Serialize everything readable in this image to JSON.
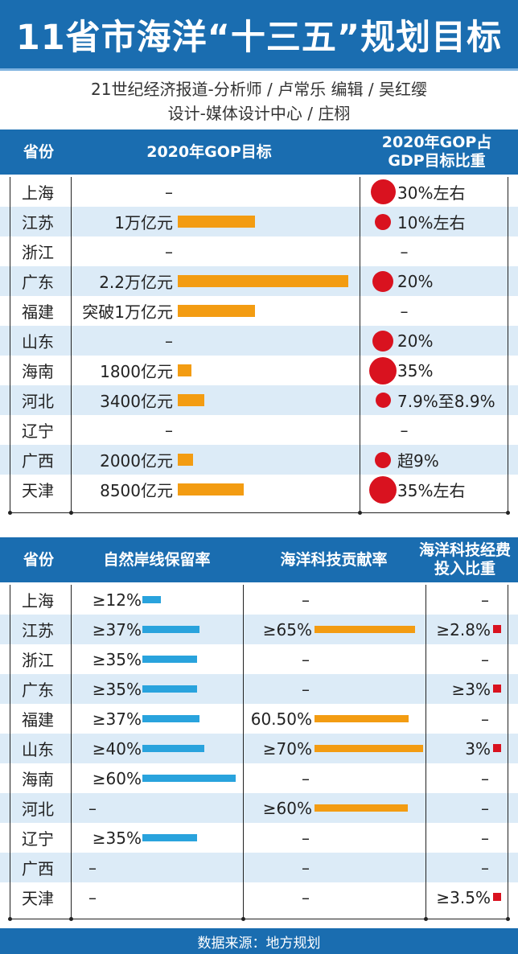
{
  "title": "11省市海洋“十三五”规划目标",
  "credits": {
    "line1": "21世纪经济报道-分析师 / 卢常乐   编辑 / 吴红缨",
    "line2": "设计-媒体设计中心 / 庄栩"
  },
  "colors": {
    "header_blue": "#1a6db0",
    "orange": "#f39c12",
    "blue": "#29a3dd",
    "red": "#d9121f",
    "row_alt": "#dcebf7"
  },
  "table1": {
    "headers": [
      "省份",
      "2020年GOP目标",
      "2020年GOP占\nGDP目标比重"
    ],
    "rows": [
      {
        "prov": "上海",
        "gop": "–",
        "gop_value": null,
        "share": "30%左右",
        "share_value": 30
      },
      {
        "prov": "江苏",
        "gop": "1万亿元",
        "gop_value": 10000,
        "share": "10%左右",
        "share_value": 10
      },
      {
        "prov": "浙江",
        "gop": "–",
        "gop_value": null,
        "share": "–",
        "share_value": null
      },
      {
        "prov": "广东",
        "gop": "2.2万亿元",
        "gop_value": 22000,
        "share": "20%",
        "share_value": 20
      },
      {
        "prov": "福建",
        "gop": "突破1万亿元",
        "gop_value": 10000,
        "share": "–",
        "share_value": null
      },
      {
        "prov": "山东",
        "gop": "–",
        "gop_value": null,
        "share": "20%",
        "share_value": 20
      },
      {
        "prov": "海南",
        "gop": "1800亿元",
        "gop_value": 1800,
        "share": "35%",
        "share_value": 35
      },
      {
        "prov": "河北",
        "gop": "3400亿元",
        "gop_value": 3400,
        "share": "7.9%至8.9%",
        "share_value": 8.4
      },
      {
        "prov": "辽宁",
        "gop": "–",
        "gop_value": null,
        "share": "–",
        "share_value": null
      },
      {
        "prov": "广西",
        "gop": "2000亿元",
        "gop_value": 2000,
        "share": "超9%",
        "share_value": 9
      },
      {
        "prov": "天津",
        "gop": "8500亿元",
        "gop_value": 8500,
        "share": "35%左右",
        "share_value": 35
      }
    ]
  },
  "table2": {
    "headers": [
      "省份",
      "自然岸线保留率",
      "海洋科技贡献率",
      "海洋科技经费\n投入比重"
    ],
    "rows": [
      {
        "prov": "上海",
        "shore": "≥12%",
        "shore_value": 12,
        "tech": "–",
        "tech_value": null,
        "fund": "–",
        "fund_value": null
      },
      {
        "prov": "江苏",
        "shore": "≥37%",
        "shore_value": 37,
        "tech": "≥65%",
        "tech_value": 65,
        "fund": "≥2.8%",
        "fund_value": 2.8
      },
      {
        "prov": "浙江",
        "shore": "≥35%",
        "shore_value": 35,
        "tech": "–",
        "tech_value": null,
        "fund": "–",
        "fund_value": null
      },
      {
        "prov": "广东",
        "shore": "≥35%",
        "shore_value": 35,
        "tech": "–",
        "tech_value": null,
        "fund": "≥3%",
        "fund_value": 3
      },
      {
        "prov": "福建",
        "shore": "≥37%",
        "shore_value": 37,
        "tech": "60.50%",
        "tech_value": 60.5,
        "fund": "–",
        "fund_value": null
      },
      {
        "prov": "山东",
        "shore": "≥40%",
        "shore_value": 40,
        "tech": "≥70%",
        "tech_value": 70,
        "fund": "3%",
        "fund_value": 3
      },
      {
        "prov": "海南",
        "shore": "≥60%",
        "shore_value": 60,
        "tech": "–",
        "tech_value": null,
        "fund": "–",
        "fund_value": null
      },
      {
        "prov": "河北",
        "shore": "–",
        "shore_value": null,
        "tech": "≥60%",
        "tech_value": 60,
        "fund": "–",
        "fund_value": null
      },
      {
        "prov": "辽宁",
        "shore": "≥35%",
        "shore_value": 35,
        "tech": "–",
        "tech_value": null,
        "fund": "–",
        "fund_value": null
      },
      {
        "prov": "广西",
        "shore": "–",
        "shore_value": null,
        "tech": "–",
        "tech_value": null,
        "fund": "–",
        "fund_value": null
      },
      {
        "prov": "天津",
        "shore": "–",
        "shore_value": null,
        "tech": "–",
        "tech_value": null,
        "fund": "≥3.5%",
        "fund_value": 3.5
      }
    ]
  },
  "chart_data": [
    {
      "type": "table",
      "columns": [
        "省份",
        "2020年GOP目标",
        "2020年GOP占GDP目标比重"
      ],
      "categories": [
        "上海",
        "江苏",
        "浙江",
        "广东",
        "福建",
        "山东",
        "海南",
        "河北",
        "辽宁",
        "广西",
        "天津"
      ],
      "series": [
        {
          "values": [
            null,
            10000,
            null,
            22000,
            10000,
            null,
            1800,
            3400,
            null,
            2000,
            8500
          ]
        },
        {
          "values": [
            30,
            10,
            null,
            20,
            null,
            20,
            35,
            8.4,
            null,
            9,
            35
          ]
        }
      ]
    },
    {
      "type": "table",
      "columns": [
        "省份",
        "自然岸线保留率",
        "海洋科技贡献率",
        "海洋科技经费投入比重"
      ],
      "categories": [
        "上海",
        "江苏",
        "浙江",
        "广东",
        "福建",
        "山东",
        "海南",
        "河北",
        "辽宁",
        "广西",
        "天津"
      ],
      "series": [
        {
          "values": [
            12,
            37,
            35,
            35,
            37,
            40,
            60,
            null,
            35,
            null,
            null
          ]
        },
        {
          "values": [
            null,
            65,
            null,
            null,
            60.5,
            70,
            null,
            60,
            null,
            null,
            null
          ]
        },
        {
          "values": [
            null,
            2.8,
            null,
            3,
            null,
            3,
            null,
            null,
            null,
            null,
            3.5
          ]
        }
      ]
    }
  ],
  "footer": "数据来源：地方规划"
}
